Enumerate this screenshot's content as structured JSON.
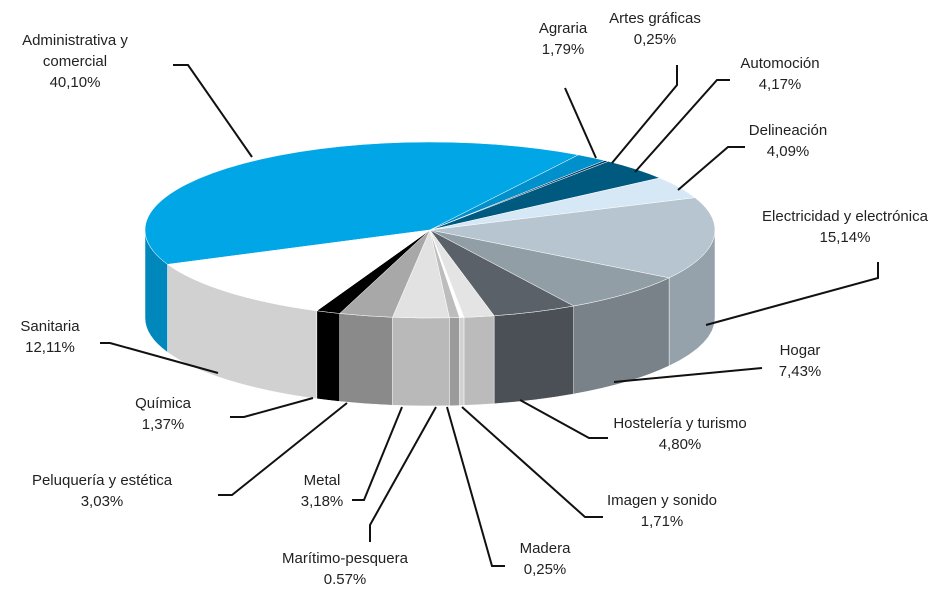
{
  "chart_data": {
    "type": "pie",
    "categories": [
      "Administrativa y comercial",
      "Agraria",
      "Artes gráficas",
      "Automoción",
      "Delineación",
      "Electricidad y electrónica",
      "Hogar",
      "Hostelería y turismo",
      "Imagen y sonido",
      "Madera",
      "Marítimo-pesquera",
      "Metal",
      "Peluquería y estética",
      "Química",
      "Sanitaria"
    ],
    "values": [
      40.1,
      1.79,
      0.25,
      4.17,
      4.09,
      15.14,
      7.43,
      4.8,
      1.71,
      0.25,
      0.57,
      3.18,
      3.03,
      1.37,
      12.11
    ],
    "value_labels": [
      "40,10%",
      "1,79%",
      "0,25%",
      "4,17%",
      "4,09%",
      "15,14%",
      "7,43%",
      "4,80%",
      "1,71%",
      "0,25%",
      "0.57%",
      "3,18%",
      "3,03%",
      "1,37%",
      "12,11%"
    ],
    "colors": [
      "#00a6e6",
      "#0090cc",
      "#003a5c",
      "#005a80",
      "#d6e8f5",
      "#b6c5d0",
      "#929ea6",
      "#5a6168",
      "#e4e4e4",
      "#ffffff",
      "#bdbdbd",
      "#e2e2e2",
      "#a8a8a8",
      "#000000",
      "#ffffff"
    ]
  }
}
